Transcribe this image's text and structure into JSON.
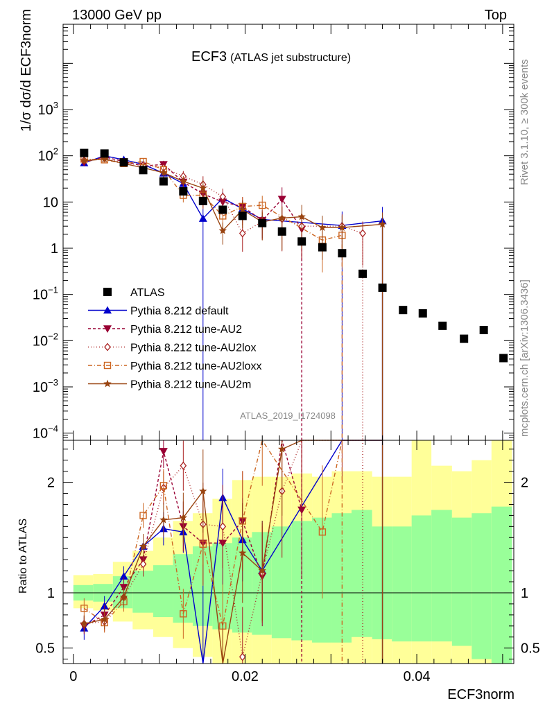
{
  "header": {
    "left": "13000 GeV pp",
    "right": "Top"
  },
  "side": {
    "rivet": "Rivet 3.1.10, ≥ 300k events",
    "mcplots": "mcplots.cern.ch [arXiv:1306.3436]"
  },
  "chart_data": {
    "type": "scatter",
    "title": "ECF3",
    "subtitle": "(ATLAS jet substructure)",
    "watermark": "ATLAS_2019_I1724098",
    "ylabel_main": "1/σ dσ/d ECF3norm",
    "ylabel_ratio": "Ratio to ATLAS",
    "xlabel": "ECF3norm",
    "xlim": [
      -0.0012,
      0.0513
    ],
    "ylim_main": [
      7e-05,
      70000
    ],
    "ylim_ratio": [
      0.36,
      2.38
    ],
    "x_ticks": [
      {
        "v": 0,
        "label": "0"
      },
      {
        "v": 0.02,
        "label": "0.02"
      },
      {
        "v": 0.04,
        "label": "0.04"
      }
    ],
    "y_ticks_main": [
      {
        "v": 0.0001,
        "b": "10",
        "e": "−4"
      },
      {
        "v": 0.001,
        "b": "10",
        "e": "−3"
      },
      {
        "v": 0.01,
        "b": "10",
        "e": "−2"
      },
      {
        "v": 0.1,
        "b": "10",
        "e": "−1"
      },
      {
        "v": 1,
        "b": "1",
        "e": ""
      },
      {
        "v": 10,
        "b": "10",
        "e": ""
      },
      {
        "v": 100,
        "b": "10",
        "e": "2"
      },
      {
        "v": 1000,
        "b": "10",
        "e": "3"
      }
    ],
    "y_ticks_ratio": [
      {
        "v": 0.5,
        "label": "0.5"
      },
      {
        "v": 1,
        "label": "1"
      },
      {
        "v": 2,
        "label": "2"
      }
    ],
    "data": {
      "name": "ATLAS",
      "x": [
        0.00125,
        0.00362,
        0.00587,
        0.00813,
        0.0105,
        0.0128,
        0.0151,
        0.0174,
        0.0197,
        0.022,
        0.0243,
        0.0266,
        0.029,
        0.0313,
        0.0337,
        0.036,
        0.0384,
        0.0407,
        0.043,
        0.0455,
        0.0478,
        0.0501
      ],
      "y": [
        115,
        112,
        72,
        49,
        28,
        17,
        10.5,
        6.8,
        5.0,
        3.5,
        2.3,
        1.4,
        1.05,
        0.78,
        0.28,
        0.14,
        0.046,
        0.039,
        0.021,
        0.011,
        0.017,
        0.0042
      ],
      "band_edges": [
        0.0,
        0.0023,
        0.0046,
        0.0069,
        0.0093,
        0.0116,
        0.0139,
        0.0162,
        0.0185,
        0.0208,
        0.0231,
        0.0254,
        0.0278,
        0.0301,
        0.0324,
        0.0348,
        0.0371,
        0.0394,
        0.0417,
        0.0441,
        0.0464,
        0.0487,
        0.0511
      ],
      "green_lo": [
        0.93,
        0.92,
        0.86,
        0.82,
        0.78,
        0.73,
        0.7,
        0.67,
        0.64,
        0.62,
        0.59,
        0.57,
        0.55,
        0.55,
        0.6,
        0.58,
        0.56,
        0.56,
        0.56,
        0.52,
        0.4,
        0.3
      ],
      "green_hi": [
        1.07,
        1.08,
        1.15,
        1.2,
        1.25,
        1.35,
        1.42,
        1.45,
        1.5,
        1.55,
        1.6,
        1.65,
        1.68,
        1.72,
        1.75,
        1.6,
        1.6,
        1.7,
        1.75,
        1.68,
        1.72,
        1.78
      ],
      "yellow_lo": [
        0.86,
        0.84,
        0.74,
        0.67,
        0.6,
        0.5,
        0.42,
        0.36,
        0.3,
        0.3,
        0.3,
        0.3,
        0.3,
        0.3,
        0.3,
        0.3,
        0.3,
        0.3,
        0.3,
        0.3,
        0.3,
        0.3
      ],
      "yellow_hi": [
        1.16,
        1.17,
        1.28,
        1.38,
        1.5,
        1.65,
        1.72,
        1.85,
        2.02,
        2.05,
        2.05,
        2.08,
        2.05,
        2.1,
        2.1,
        2.05,
        2.05,
        2.45,
        2.15,
        2.1,
        2.2,
        2.45
      ]
    },
    "series": [
      {
        "name": "Pythia 8.212 default",
        "color": "#0000cc",
        "marker": "triangle-up",
        "dash": "",
        "x": [
          0.00125,
          0.00362,
          0.00587,
          0.00813,
          0.0105,
          0.0128,
          0.0151,
          0.0174,
          0.0197,
          0.022,
          0.0313,
          0.036
        ],
        "y": [
          70,
          100,
          82,
          65,
          42,
          25,
          4.4,
          12.2,
          7.1,
          4.2,
          3.1,
          3.9
        ],
        "r": [
          0.68,
          0.88,
          1.15,
          1.42,
          1.58,
          1.55,
          0.35,
          1.86,
          1.48,
          1.2,
          3.9,
          28
        ],
        "err": [
          0.14,
          0.12,
          0.12,
          0.14,
          0.2,
          0.25,
          1.2,
          0.35,
          0.5,
          0.6,
          1.0,
          1.0
        ]
      },
      {
        "name": "Pythia 8.212 tune-AU2",
        "color": "#990033",
        "marker": "triangle-down",
        "dash": "4,3",
        "x": [
          0.00125,
          0.00362,
          0.00587,
          0.00813,
          0.0105,
          0.0128,
          0.0151,
          0.0174,
          0.0197,
          0.022,
          0.0243,
          0.0266
        ],
        "y": [
          72,
          95,
          75,
          60,
          65,
          27,
          15,
          10,
          8.0,
          4.0,
          11.5,
          2.6
        ],
        "r": [
          0.7,
          0.8,
          1.05,
          1.3,
          2.28,
          1.6,
          1.45,
          1.45,
          1.65,
          1.15,
          4.9,
          1.75
        ],
        "err": [
          0.1,
          0.12,
          0.12,
          0.15,
          0.2,
          0.3,
          0.5,
          0.5,
          0.6,
          0.6,
          0.8,
          0.8
        ]
      },
      {
        "name": "Pythia 8.212 tune-AU2lox",
        "color": "#aa2222",
        "marker": "diamond-open",
        "dash": "1,3",
        "x": [
          0.00125,
          0.00362,
          0.00587,
          0.00813,
          0.0105,
          0.0128,
          0.0151,
          0.0174,
          0.0197,
          0.022,
          0.0243,
          0.0266,
          0.0313,
          0.0337
        ],
        "y": [
          80,
          88,
          70,
          62,
          55,
          36,
          24,
          13,
          2.1,
          3.8,
          4.3,
          3.0,
          3.0,
          2.1
        ],
        "r": [
          0.72,
          0.74,
          0.96,
          1.26,
          1.95,
          2.15,
          1.62,
          1.6,
          0.42,
          1.18,
          1.92,
          2.4,
          2.6,
          3.2
        ],
        "err": [
          0.1,
          0.12,
          0.12,
          0.15,
          0.2,
          0.3,
          0.5,
          0.5,
          0.6,
          0.6,
          0.8,
          0.8,
          0.8,
          0.8
        ]
      },
      {
        "name": "Pythia 8.212 tune-AU2loxx",
        "color": "#cc6622",
        "marker": "square-open",
        "dash": "6,3,1,3",
        "x": [
          0.00125,
          0.00362,
          0.00587,
          0.00813,
          0.0105,
          0.0128,
          0.0151,
          0.0174,
          0.0197,
          0.022,
          0.029,
          0.0313
        ],
        "y": [
          85,
          82,
          68,
          75,
          50,
          14,
          14,
          5.0,
          8.0,
          8.5,
          1.5,
          1.9
        ],
        "r": [
          0.86,
          0.73,
          0.92,
          1.7,
          1.97,
          0.81,
          1.44,
          0.7,
          1.65,
          2.42,
          1.55,
          3.0
        ],
        "err": [
          0.12,
          0.12,
          0.12,
          0.15,
          0.2,
          0.3,
          0.5,
          0.5,
          0.6,
          0.6,
          0.8,
          0.8
        ]
      },
      {
        "name": "Pythia 8.212 tune-AU2m",
        "color": "#994411",
        "marker": "star",
        "dash": "",
        "x": [
          0.00125,
          0.00362,
          0.00587,
          0.00813,
          0.0105,
          0.0128,
          0.0151,
          0.0174,
          0.0197,
          0.022,
          0.0243,
          0.0266,
          0.029,
          0.0313,
          0.036
        ],
        "y": [
          78,
          85,
          68,
          55,
          43,
          28,
          20,
          2.4,
          6.8,
          3.7,
          4.5,
          4.8,
          2.8,
          2.8,
          3.3
        ],
        "r": [
          0.72,
          0.76,
          0.96,
          1.42,
          1.66,
          1.68,
          1.92,
          0.35,
          1.36,
          1.2,
          2.3,
          3.2,
          3.0,
          4.0,
          24
        ],
        "err": [
          0.1,
          0.12,
          0.12,
          0.15,
          0.2,
          0.3,
          0.5,
          0.5,
          0.6,
          0.6,
          0.8,
          0.8,
          0.8,
          0.8,
          0.8
        ]
      }
    ]
  }
}
